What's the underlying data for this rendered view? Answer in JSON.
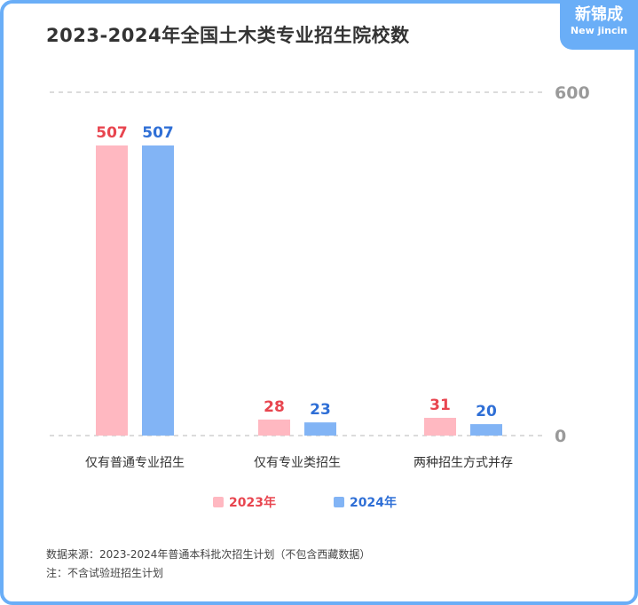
{
  "title": "2023-2024年全国土木类专业招生院校数",
  "logo": {
    "cn": "新锦成",
    "en": "New jincin"
  },
  "colors": {
    "series2023": "#ffb8c1",
    "series2024": "#82b4f5",
    "label2023": "#e8454f",
    "label2024": "#2f6fd6",
    "accent": "#6aaef7"
  },
  "chart_data": {
    "type": "bar",
    "categories": [
      "仅有普通专业招生",
      "仅有专业类招生",
      "两种招生方式并存"
    ],
    "series": [
      {
        "name": "2023年",
        "values": [
          507,
          28,
          31
        ]
      },
      {
        "name": "2024年",
        "values": [
          507,
          23,
          20
        ]
      }
    ],
    "ylim": [
      0,
      600
    ],
    "yticks": [
      "0",
      "600"
    ],
    "legend": "bottom",
    "grid": true
  },
  "footnotes": {
    "source": "数据来源：2023-2024年普通本科批次招生计划（不包含西藏数据）",
    "note": "注：不含试验班招生计划"
  }
}
